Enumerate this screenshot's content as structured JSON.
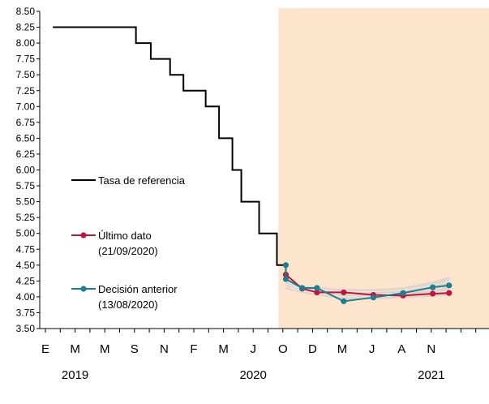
{
  "chart_data": {
    "type": "line",
    "yticks": [
      "3.50",
      "3.75",
      "4.00",
      "4.25",
      "4.50",
      "4.75",
      "5.00",
      "5.25",
      "5.50",
      "5.75",
      "6.00",
      "6.25",
      "6.50",
      "6.75",
      "7.00",
      "7.25",
      "7.50",
      "7.75",
      "8.00",
      "8.25",
      "8.50"
    ],
    "ylim": [
      3.5,
      8.5
    ],
    "xlim": [
      0,
      33
    ],
    "month_labels": [
      {
        "x": 0,
        "label": "E"
      },
      {
        "x": 2,
        "label": "M"
      },
      {
        "x": 4,
        "label": "M"
      },
      {
        "x": 6,
        "label": "S"
      },
      {
        "x": 8,
        "label": "N"
      },
      {
        "x": 10,
        "label": "F"
      },
      {
        "x": 12,
        "label": "M"
      },
      {
        "x": 14,
        "label": "J"
      },
      {
        "x": 16,
        "label": "O"
      },
      {
        "x": 18,
        "label": "D"
      },
      {
        "x": 20,
        "label": "M"
      },
      {
        "x": 22,
        "label": "J"
      },
      {
        "x": 24,
        "label": "A"
      },
      {
        "x": 26,
        "label": "N"
      }
    ],
    "year_labels": [
      {
        "x": 2,
        "label": "2019"
      },
      {
        "x": 14,
        "label": "2020"
      },
      {
        "x": 26,
        "label": "2021"
      }
    ],
    "forecast_region": [
      15.7,
      33
    ],
    "series": [
      {
        "name": "Tasa de referencia",
        "color": "#000000",
        "style": "step",
        "points": [
          [
            0.5,
            8.25
          ],
          [
            6.1,
            8.25
          ],
          [
            6.1,
            8.0
          ],
          [
            7.1,
            8.0
          ],
          [
            7.1,
            7.75
          ],
          [
            8.4,
            7.75
          ],
          [
            8.4,
            7.5
          ],
          [
            9.3,
            7.5
          ],
          [
            9.3,
            7.25
          ],
          [
            10.8,
            7.25
          ],
          [
            10.8,
            7.0
          ],
          [
            11.7,
            7.0
          ],
          [
            11.7,
            6.5
          ],
          [
            12.6,
            6.5
          ],
          [
            12.6,
            6.0
          ],
          [
            13.2,
            6.0
          ],
          [
            13.2,
            5.5
          ],
          [
            14.4,
            5.5
          ],
          [
            14.4,
            5.0
          ],
          [
            15.6,
            5.0
          ],
          [
            15.6,
            4.5
          ],
          [
            16.2,
            4.5
          ]
        ]
      },
      {
        "name": "Último dato",
        "label_line2": "(21/09/2020)",
        "color": "#c0143c",
        "style": "line",
        "points": [
          [
            16.2,
            4.5
          ],
          [
            16.2,
            4.35
          ],
          [
            17.3,
            4.13
          ],
          [
            18.3,
            4.07
          ],
          [
            20.1,
            4.07
          ],
          [
            22.1,
            4.03
          ],
          [
            24.1,
            4.02
          ],
          [
            26.1,
            4.05
          ],
          [
            27.2,
            4.06
          ]
        ]
      },
      {
        "name": "Decisión anterior",
        "label_line2": "(13/08/2020)",
        "color": "#1b7f8e",
        "style": "line",
        "points": [
          [
            16.2,
            4.5
          ],
          [
            16.2,
            4.28
          ],
          [
            17.3,
            4.14
          ],
          [
            18.3,
            4.14
          ],
          [
            20.1,
            3.93
          ],
          [
            22.1,
            3.99
          ],
          [
            24.1,
            4.06
          ],
          [
            26.1,
            4.15
          ],
          [
            27.2,
            4.18
          ]
        ]
      }
    ],
    "fan": {
      "color": "#c8c8c8",
      "upper": [
        [
          16.2,
          4.28
        ],
        [
          17.3,
          4.18
        ],
        [
          18.3,
          4.16
        ],
        [
          20.1,
          4.12
        ],
        [
          22.1,
          4.12
        ],
        [
          24.1,
          4.15
        ],
        [
          26.1,
          4.24
        ],
        [
          27.2,
          4.32
        ]
      ],
      "lower": [
        [
          16.2,
          4.12
        ],
        [
          17.3,
          4.06
        ],
        [
          18.3,
          4.02
        ],
        [
          20.1,
          3.96
        ],
        [
          22.1,
          3.96
        ],
        [
          24.1,
          3.98
        ],
        [
          26.1,
          4.0
        ],
        [
          27.2,
          4.02
        ]
      ]
    },
    "legend": [
      {
        "name": "Tasa de referencia",
        "color": "#000000",
        "marker": false
      },
      {
        "name": "Último dato",
        "line2": "(21/09/2020)",
        "color": "#c0143c",
        "marker": true
      },
      {
        "name": "Decisión anterior",
        "line2": "(13/08/2020)",
        "color": "#1b7f8e",
        "marker": true
      }
    ],
    "background": "#fde4cc",
    "grid": false
  }
}
